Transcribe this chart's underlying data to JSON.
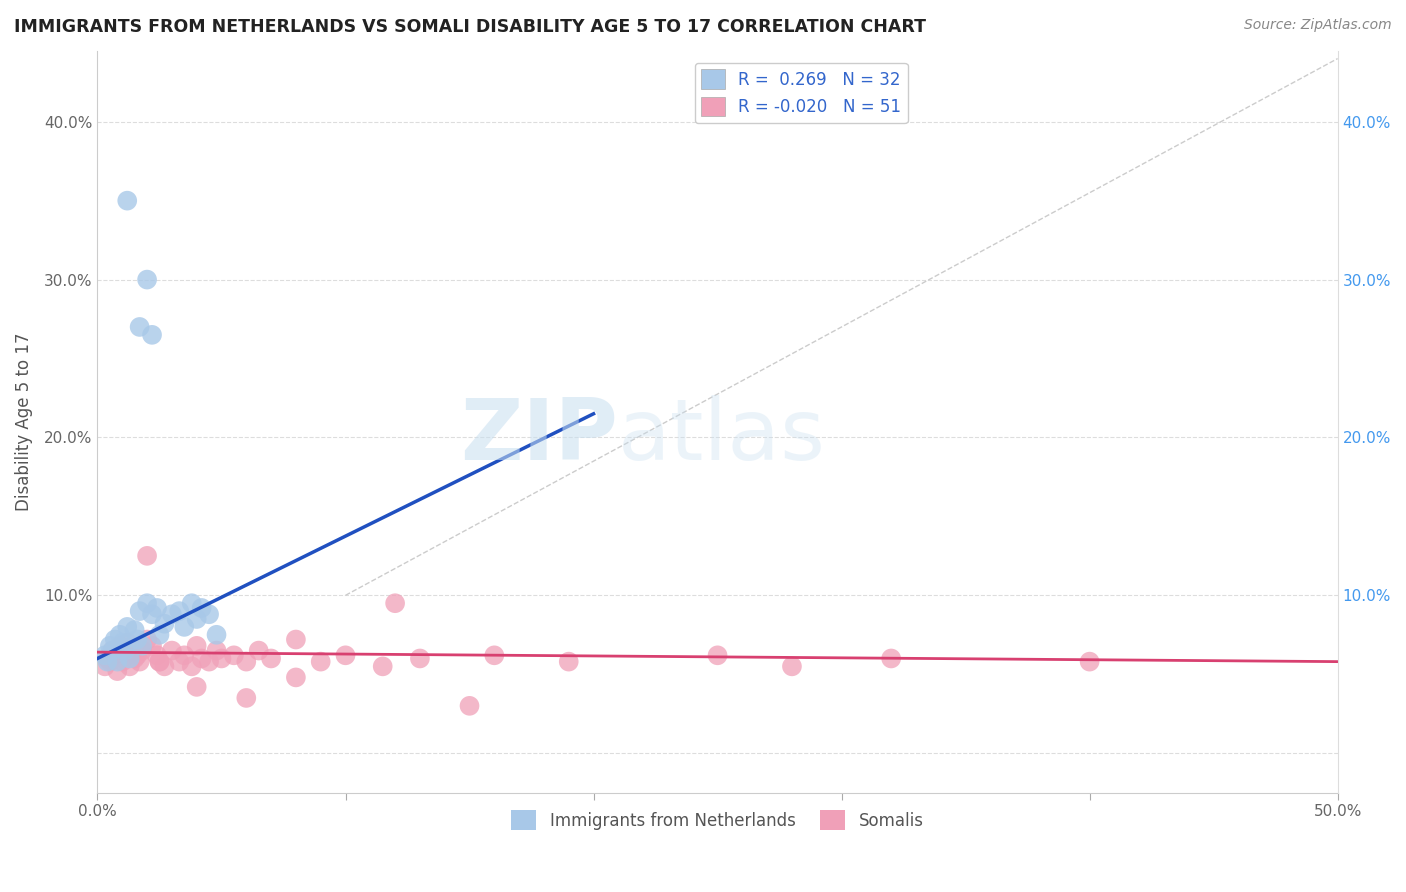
{
  "title": "IMMIGRANTS FROM NETHERLANDS VS SOMALI DISABILITY AGE 5 TO 17 CORRELATION CHART",
  "source": "Source: ZipAtlas.com",
  "ylabel": "Disability Age 5 to 17",
  "xlim": [
    0.0,
    0.5
  ],
  "ylim": [
    -0.025,
    0.445
  ],
  "xticks": [
    0.0,
    0.1,
    0.2,
    0.3,
    0.4,
    0.5
  ],
  "xticklabels": [
    "0.0%",
    "",
    "",
    "",
    "",
    "50.0%"
  ],
  "yticks": [
    0.0,
    0.1,
    0.2,
    0.3,
    0.4
  ],
  "yticklabels": [
    "",
    "10.0%",
    "20.0%",
    "30.0%",
    "40.0%"
  ],
  "right_ytick_labels": [
    "",
    "10.0%",
    "20.0%",
    "30.0%",
    "40.0%"
  ],
  "legend_r1": "R =  0.269",
  "legend_n1": "N = 32",
  "legend_r2": "R = -0.020",
  "legend_n2": "N = 51",
  "legend_label1": "Immigrants from Netherlands",
  "legend_label2": "Somalis",
  "color_blue": "#a8c8e8",
  "color_pink": "#f0a0b8",
  "line_blue": "#2050c0",
  "line_pink": "#d84070",
  "watermark_zip": "ZIP",
  "watermark_atlas": "atlas",
  "blue_scatter_x": [
    0.003,
    0.004,
    0.005,
    0.006,
    0.007,
    0.008,
    0.009,
    0.01,
    0.011,
    0.012,
    0.013,
    0.015,
    0.016,
    0.017,
    0.018,
    0.02,
    0.022,
    0.024,
    0.025,
    0.027,
    0.03,
    0.033,
    0.035,
    0.038,
    0.04,
    0.042,
    0.045,
    0.048,
    0.017,
    0.02,
    0.022,
    0.012
  ],
  "blue_scatter_y": [
    0.062,
    0.058,
    0.068,
    0.065,
    0.072,
    0.058,
    0.075,
    0.07,
    0.065,
    0.08,
    0.06,
    0.078,
    0.072,
    0.09,
    0.068,
    0.095,
    0.088,
    0.092,
    0.075,
    0.082,
    0.088,
    0.09,
    0.08,
    0.095,
    0.085,
    0.092,
    0.088,
    0.075,
    0.27,
    0.3,
    0.265,
    0.35
  ],
  "pink_scatter_x": [
    0.003,
    0.004,
    0.005,
    0.006,
    0.007,
    0.008,
    0.009,
    0.01,
    0.011,
    0.012,
    0.013,
    0.015,
    0.016,
    0.017,
    0.018,
    0.02,
    0.022,
    0.024,
    0.025,
    0.027,
    0.03,
    0.033,
    0.035,
    0.038,
    0.04,
    0.042,
    0.045,
    0.048,
    0.05,
    0.055,
    0.06,
    0.065,
    0.07,
    0.08,
    0.09,
    0.1,
    0.115,
    0.13,
    0.16,
    0.19,
    0.28,
    0.32,
    0.4,
    0.02,
    0.025,
    0.12,
    0.25,
    0.04,
    0.06,
    0.08,
    0.15
  ],
  "pink_scatter_y": [
    0.055,
    0.06,
    0.058,
    0.065,
    0.062,
    0.052,
    0.068,
    0.058,
    0.065,
    0.07,
    0.055,
    0.06,
    0.062,
    0.058,
    0.065,
    0.072,
    0.068,
    0.062,
    0.058,
    0.055,
    0.065,
    0.058,
    0.062,
    0.055,
    0.068,
    0.06,
    0.058,
    0.065,
    0.06,
    0.062,
    0.058,
    0.065,
    0.06,
    0.072,
    0.058,
    0.062,
    0.055,
    0.06,
    0.062,
    0.058,
    0.055,
    0.06,
    0.058,
    0.125,
    0.058,
    0.095,
    0.062,
    0.042,
    0.035,
    0.048,
    0.03
  ],
  "blue_line_x": [
    0.0,
    0.2
  ],
  "blue_line_y": [
    0.06,
    0.215
  ],
  "pink_line_x": [
    0.0,
    0.5
  ],
  "pink_line_y": [
    0.064,
    0.058
  ],
  "diag_line_x": [
    0.1,
    0.5
  ],
  "diag_line_y": [
    0.1,
    0.44
  ]
}
